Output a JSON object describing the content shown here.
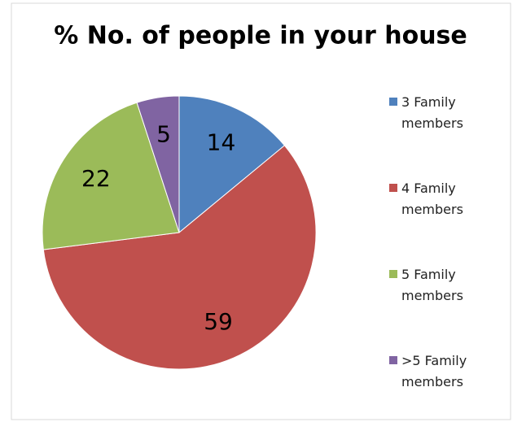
{
  "chart_data": {
    "type": "pie",
    "title": "% No. of people in your house",
    "categories": [
      "3 Family members",
      "4 Family members",
      "5 Family members",
      ">5 Family members"
    ],
    "values": [
      14,
      59,
      22,
      5
    ],
    "colors": [
      "#4f81bd",
      "#c0504d",
      "#9bbb59",
      "#8064a2"
    ],
    "legend": "right"
  }
}
